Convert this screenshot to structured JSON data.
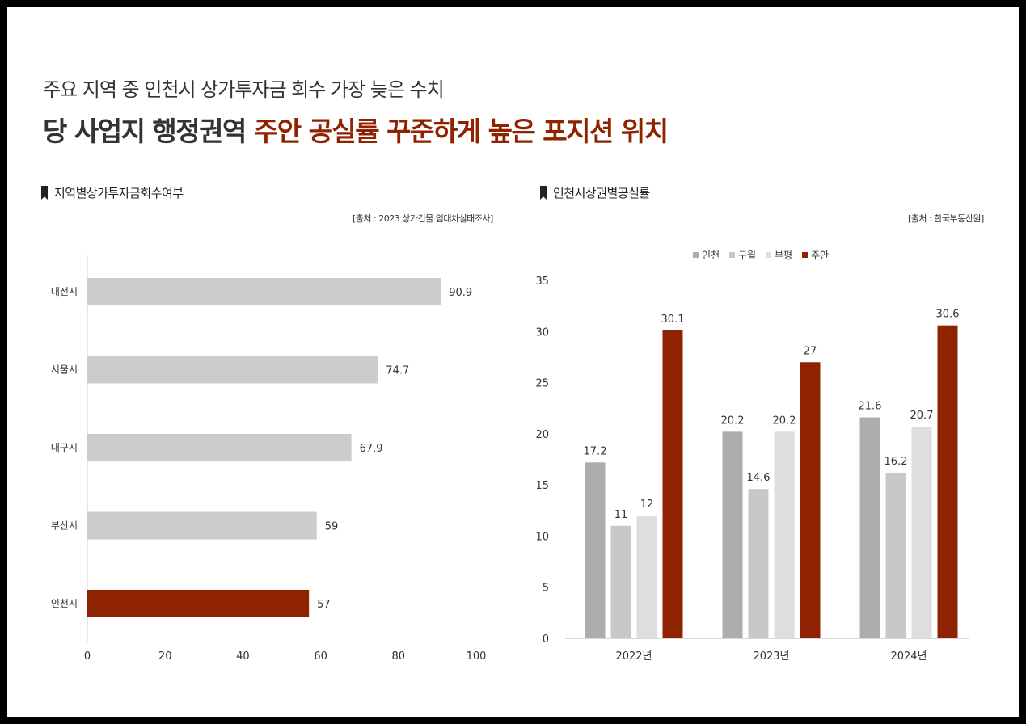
{
  "header": {
    "title_line1": "주요 지역 중 인천시 상가투자금 회수 가장 늦은 수치",
    "title_line2_plain": "당 사업지 행정권역 ",
    "title_line2_highlight": "주안 공실률 꾸준하게 높은 포지션 위치"
  },
  "left_section": {
    "title": "지역별상가투자금회수여부",
    "source": "[출처 : 2023 상가건물 임대차실태조사]"
  },
  "right_section": {
    "title": "인천시상권별공실률",
    "source": "[출처 : 한국부동산원]"
  },
  "colors": {
    "gray_bar": "#cccccc",
    "accent": "#8f2200",
    "s_incheon": "#adadad",
    "s_guwol": "#c8c8c8",
    "s_bupyeong": "#dedede",
    "s_juan": "#8f2200"
  },
  "chart_data": [
    {
      "type": "bar",
      "orientation": "horizontal",
      "categories": [
        "대전시",
        "서울시",
        "대구시",
        "부산시",
        "인천시"
      ],
      "values": [
        90.9,
        74.7,
        67.9,
        59,
        57
      ],
      "highlight": "인천시",
      "xlim": [
        0,
        100
      ],
      "x_ticks": [
        "0",
        "20",
        "40",
        "60",
        "80",
        "100"
      ],
      "grid": false,
      "legend": "none"
    },
    {
      "type": "bar",
      "orientation": "vertical",
      "categories": [
        "2022년",
        "2023년",
        "2024년"
      ],
      "series": [
        {
          "name": "인천",
          "values": [
            17.2,
            20.2,
            21.6
          ]
        },
        {
          "name": "구월",
          "values": [
            11,
            14.6,
            16.2
          ]
        },
        {
          "name": "부평",
          "values": [
            12,
            20.2,
            20.7
          ]
        },
        {
          "name": "주안",
          "values": [
            30.1,
            27,
            30.6
          ]
        }
      ],
      "ylim": [
        0,
        35
      ],
      "y_ticks": [
        "0",
        "5",
        "10",
        "15",
        "20",
        "25",
        "30",
        "35"
      ],
      "grid": false,
      "legend": "top-center"
    }
  ]
}
